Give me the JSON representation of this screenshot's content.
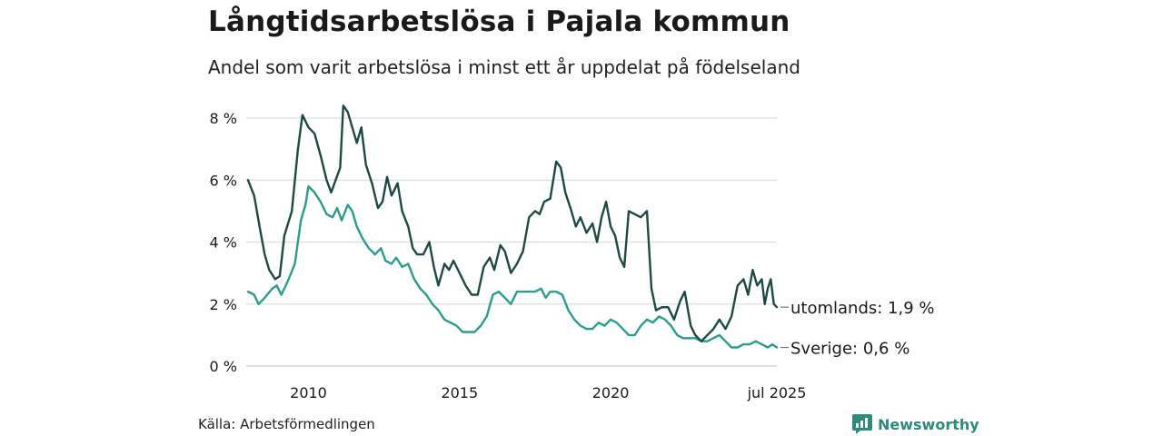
{
  "header": {
    "title": "Långtidsarbetslösa i Pajala kommun",
    "subtitle": "Andel som varit arbetslösa i minst ett år uppdelat på födelseland"
  },
  "footer": {
    "source": "Källa: Arbetsförmedlingen",
    "brand": "Newsworthy",
    "brand_icon": "bar-chart-speech-bubble-icon",
    "brand_color": "#2c8b7a"
  },
  "chart_data": {
    "type": "line",
    "x_ticks": [
      {
        "x": 2010.0,
        "label": "2010"
      },
      {
        "x": 2015.0,
        "label": "2015"
      },
      {
        "x": 2020.0,
        "label": "2020"
      },
      {
        "x": 2025.5,
        "label": "jul 2025"
      }
    ],
    "y_ticks": [
      {
        "y": 0,
        "label": "0 %"
      },
      {
        "y": 2,
        "label": "2 %"
      },
      {
        "y": 4,
        "label": "4 %"
      },
      {
        "y": 6,
        "label": "6 %"
      },
      {
        "y": 8,
        "label": "8 %"
      }
    ],
    "xlim": [
      2008.0,
      2025.5
    ],
    "ylim": [
      0,
      8
    ],
    "grid": true,
    "series": [
      {
        "key": "utomlands",
        "end_label": "utomlands: 1,9 %",
        "color": "#1d4a44",
        "points": [
          [
            2008.0,
            6.0
          ],
          [
            2008.2,
            5.5
          ],
          [
            2008.4,
            4.4
          ],
          [
            2008.55,
            3.6
          ],
          [
            2008.7,
            3.1
          ],
          [
            2008.9,
            2.8
          ],
          [
            2009.05,
            2.9
          ],
          [
            2009.2,
            4.2
          ],
          [
            2009.45,
            5.0
          ],
          [
            2009.65,
            7.0
          ],
          [
            2009.8,
            8.1
          ],
          [
            2010.0,
            7.7
          ],
          [
            2010.2,
            7.5
          ],
          [
            2010.4,
            6.8
          ],
          [
            2010.6,
            6.0
          ],
          [
            2010.75,
            5.6
          ],
          [
            2010.9,
            6.0
          ],
          [
            2011.05,
            6.4
          ],
          [
            2011.15,
            8.4
          ],
          [
            2011.3,
            8.2
          ],
          [
            2011.45,
            7.7
          ],
          [
            2011.6,
            7.2
          ],
          [
            2011.75,
            7.7
          ],
          [
            2011.9,
            6.5
          ],
          [
            2012.1,
            5.9
          ],
          [
            2012.3,
            5.1
          ],
          [
            2012.45,
            5.3
          ],
          [
            2012.6,
            6.1
          ],
          [
            2012.75,
            5.5
          ],
          [
            2012.95,
            5.9
          ],
          [
            2013.1,
            5.0
          ],
          [
            2013.3,
            4.5
          ],
          [
            2013.45,
            3.8
          ],
          [
            2013.6,
            3.6
          ],
          [
            2013.8,
            3.6
          ],
          [
            2014.0,
            4.0
          ],
          [
            2014.15,
            3.2
          ],
          [
            2014.3,
            2.6
          ],
          [
            2014.5,
            3.3
          ],
          [
            2014.65,
            3.1
          ],
          [
            2014.8,
            3.4
          ],
          [
            2015.0,
            3.0
          ],
          [
            2015.2,
            2.6
          ],
          [
            2015.4,
            2.3
          ],
          [
            2015.6,
            2.3
          ],
          [
            2015.8,
            3.2
          ],
          [
            2016.0,
            3.5
          ],
          [
            2016.15,
            3.1
          ],
          [
            2016.35,
            3.9
          ],
          [
            2016.5,
            3.7
          ],
          [
            2016.7,
            3.0
          ],
          [
            2016.9,
            3.3
          ],
          [
            2017.1,
            3.7
          ],
          [
            2017.3,
            4.8
          ],
          [
            2017.5,
            5.0
          ],
          [
            2017.65,
            4.9
          ],
          [
            2017.8,
            5.3
          ],
          [
            2018.0,
            5.4
          ],
          [
            2018.2,
            6.6
          ],
          [
            2018.35,
            6.4
          ],
          [
            2018.5,
            5.6
          ],
          [
            2018.7,
            5.0
          ],
          [
            2018.85,
            4.5
          ],
          [
            2019.0,
            4.8
          ],
          [
            2019.2,
            4.3
          ],
          [
            2019.4,
            4.6
          ],
          [
            2019.55,
            4.0
          ],
          [
            2019.7,
            4.8
          ],
          [
            2019.85,
            5.3
          ],
          [
            2020.0,
            4.5
          ],
          [
            2020.15,
            4.2
          ],
          [
            2020.3,
            3.5
          ],
          [
            2020.45,
            3.2
          ],
          [
            2020.6,
            5.0
          ],
          [
            2020.8,
            4.9
          ],
          [
            2021.0,
            4.8
          ],
          [
            2021.2,
            5.0
          ],
          [
            2021.35,
            2.5
          ],
          [
            2021.5,
            1.8
          ],
          [
            2021.7,
            1.9
          ],
          [
            2021.9,
            1.9
          ],
          [
            2022.1,
            1.5
          ],
          [
            2022.3,
            2.1
          ],
          [
            2022.45,
            2.4
          ],
          [
            2022.65,
            1.3
          ],
          [
            2022.8,
            1.0
          ],
          [
            2023.0,
            0.8
          ],
          [
            2023.2,
            1.0
          ],
          [
            2023.4,
            1.2
          ],
          [
            2023.6,
            1.5
          ],
          [
            2023.8,
            1.2
          ],
          [
            2024.0,
            1.6
          ],
          [
            2024.2,
            2.6
          ],
          [
            2024.4,
            2.8
          ],
          [
            2024.55,
            2.3
          ],
          [
            2024.7,
            3.1
          ],
          [
            2024.85,
            2.6
          ],
          [
            2025.0,
            2.8
          ],
          [
            2025.1,
            2.0
          ],
          [
            2025.2,
            2.5
          ],
          [
            2025.3,
            2.8
          ],
          [
            2025.4,
            2.0
          ],
          [
            2025.5,
            1.9
          ]
        ]
      },
      {
        "key": "sverige",
        "end_label": "Sverige: 0,6 %",
        "color": "#2a9d8f",
        "points": [
          [
            2008.0,
            2.4
          ],
          [
            2008.2,
            2.3
          ],
          [
            2008.35,
            2.0
          ],
          [
            2008.55,
            2.2
          ],
          [
            2008.8,
            2.5
          ],
          [
            2008.95,
            2.6
          ],
          [
            2009.1,
            2.3
          ],
          [
            2009.3,
            2.7
          ],
          [
            2009.55,
            3.3
          ],
          [
            2009.75,
            4.7
          ],
          [
            2009.9,
            5.2
          ],
          [
            2010.0,
            5.8
          ],
          [
            2010.2,
            5.6
          ],
          [
            2010.4,
            5.3
          ],
          [
            2010.6,
            4.9
          ],
          [
            2010.8,
            4.8
          ],
          [
            2010.95,
            5.1
          ],
          [
            2011.1,
            4.7
          ],
          [
            2011.3,
            5.2
          ],
          [
            2011.45,
            5.0
          ],
          [
            2011.6,
            4.5
          ],
          [
            2011.8,
            4.1
          ],
          [
            2012.0,
            3.8
          ],
          [
            2012.2,
            3.6
          ],
          [
            2012.4,
            3.8
          ],
          [
            2012.55,
            3.4
          ],
          [
            2012.75,
            3.3
          ],
          [
            2012.9,
            3.5
          ],
          [
            2013.1,
            3.2
          ],
          [
            2013.3,
            3.3
          ],
          [
            2013.5,
            2.8
          ],
          [
            2013.7,
            2.5
          ],
          [
            2013.9,
            2.3
          ],
          [
            2014.1,
            2.0
          ],
          [
            2014.3,
            1.8
          ],
          [
            2014.5,
            1.5
          ],
          [
            2014.7,
            1.4
          ],
          [
            2014.9,
            1.3
          ],
          [
            2015.1,
            1.1
          ],
          [
            2015.3,
            1.1
          ],
          [
            2015.5,
            1.1
          ],
          [
            2015.7,
            1.3
          ],
          [
            2015.9,
            1.6
          ],
          [
            2016.1,
            2.3
          ],
          [
            2016.3,
            2.4
          ],
          [
            2016.5,
            2.2
          ],
          [
            2016.7,
            2.0
          ],
          [
            2016.9,
            2.4
          ],
          [
            2017.1,
            2.4
          ],
          [
            2017.3,
            2.4
          ],
          [
            2017.5,
            2.4
          ],
          [
            2017.7,
            2.5
          ],
          [
            2017.85,
            2.2
          ],
          [
            2018.0,
            2.4
          ],
          [
            2018.2,
            2.4
          ],
          [
            2018.4,
            2.3
          ],
          [
            2018.6,
            1.8
          ],
          [
            2018.8,
            1.5
          ],
          [
            2019.0,
            1.3
          ],
          [
            2019.2,
            1.2
          ],
          [
            2019.4,
            1.2
          ],
          [
            2019.6,
            1.4
          ],
          [
            2019.8,
            1.3
          ],
          [
            2020.0,
            1.5
          ],
          [
            2020.2,
            1.4
          ],
          [
            2020.4,
            1.2
          ],
          [
            2020.6,
            1.0
          ],
          [
            2020.8,
            1.0
          ],
          [
            2021.0,
            1.3
          ],
          [
            2021.2,
            1.5
          ],
          [
            2021.4,
            1.4
          ],
          [
            2021.6,
            1.6
          ],
          [
            2021.8,
            1.5
          ],
          [
            2022.0,
            1.3
          ],
          [
            2022.2,
            1.0
          ],
          [
            2022.4,
            0.9
          ],
          [
            2022.6,
            0.9
          ],
          [
            2022.8,
            0.9
          ],
          [
            2023.0,
            0.8
          ],
          [
            2023.2,
            0.8
          ],
          [
            2023.4,
            0.9
          ],
          [
            2023.6,
            1.0
          ],
          [
            2023.8,
            0.8
          ],
          [
            2024.0,
            0.6
          ],
          [
            2024.2,
            0.6
          ],
          [
            2024.4,
            0.7
          ],
          [
            2024.6,
            0.7
          ],
          [
            2024.8,
            0.8
          ],
          [
            2025.0,
            0.7
          ],
          [
            2025.2,
            0.6
          ],
          [
            2025.35,
            0.7
          ],
          [
            2025.5,
            0.6
          ]
        ]
      }
    ]
  }
}
